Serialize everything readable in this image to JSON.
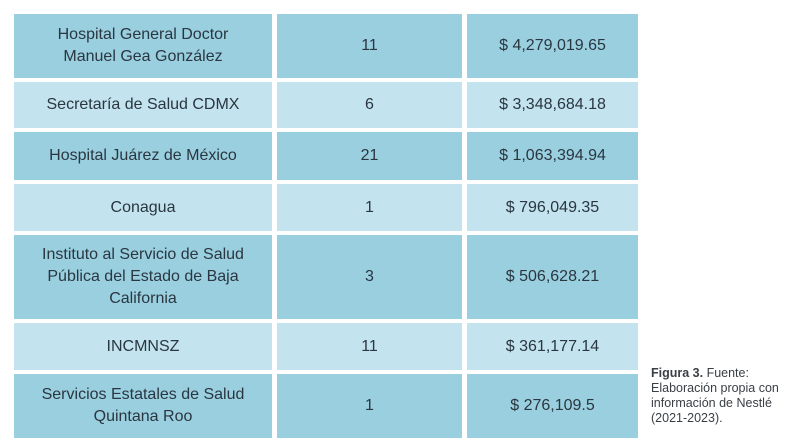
{
  "table": {
    "rows": [
      {
        "name": "Hospital General Doctor Manuel Gea González",
        "count": "11",
        "amount": "$ 4,279,019.65"
      },
      {
        "name": "Secretaría de Salud CDMX",
        "count": "6",
        "amount": "$ 3,348,684.18"
      },
      {
        "name": "Hospital Juárez de México",
        "count": "21",
        "amount": "$ 1,063,394.94"
      },
      {
        "name": "Conagua",
        "count": "1",
        "amount": "$ 796,049.35"
      },
      {
        "name": "Instituto al Servicio de Salud Pública del Estado de Baja California",
        "count": "3",
        "amount": "$ 506,628.21"
      },
      {
        "name": "INCMNSZ",
        "count": "11",
        "amount": "$ 361,177.14"
      },
      {
        "name": "Servicios Estatales de Salud Quintana Roo",
        "count": "1",
        "amount": "$ 276,109.5"
      }
    ]
  },
  "caption": {
    "label": "Figura 3.",
    "text": " Fuente: Elaboración propia con información de Nestlé (2021-2023)."
  },
  "colors": {
    "row_dark": "#99cfdf",
    "row_light": "#c3e3ee",
    "text": "#2a3640"
  }
}
